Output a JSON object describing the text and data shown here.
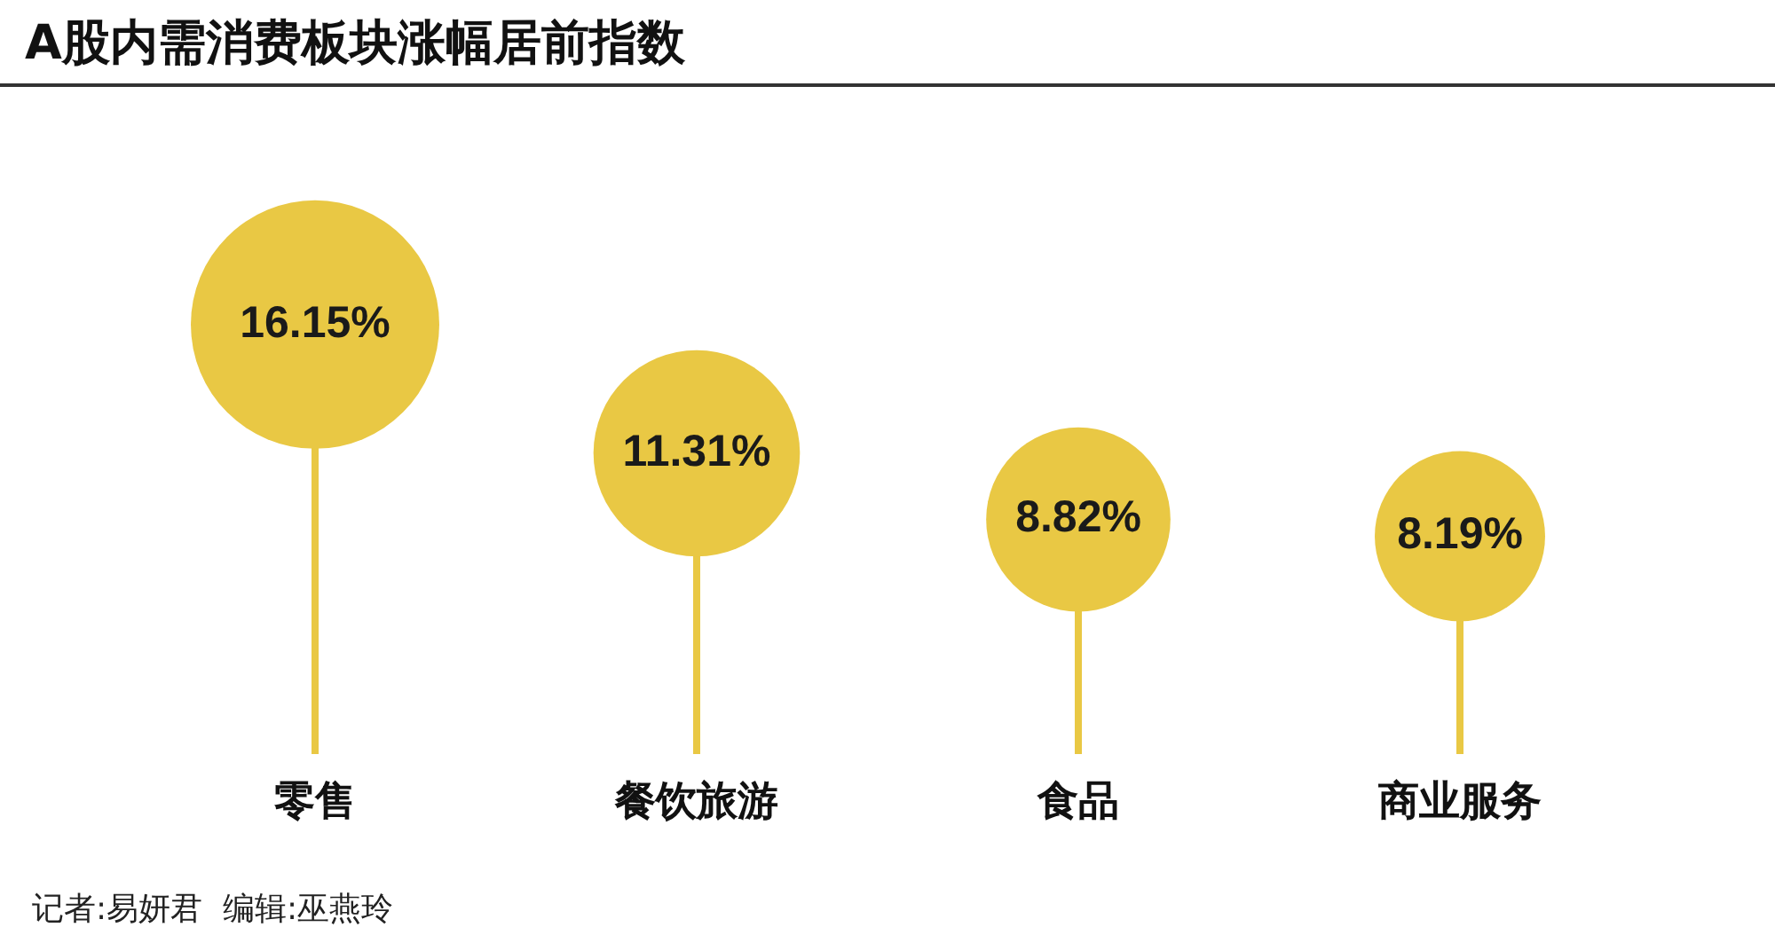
{
  "chart_data": {
    "type": "lollipop",
    "title": "A股内需消费板块涨幅居前指数",
    "categories": [
      "零售",
      "餐饮旅游",
      "食品",
      "商业服务"
    ],
    "values": [
      16.15,
      11.31,
      8.82,
      8.19
    ],
    "sizes": [
      1,
      0.69,
      0.55,
      0.47
    ],
    "value_labels": [
      "16.15%",
      "11.31%",
      "8.82%",
      "8.19%"
    ],
    "color": "#e9c844",
    "annotations": [
      "记者:易妍君  编辑:巫燕玲"
    ]
  }
}
